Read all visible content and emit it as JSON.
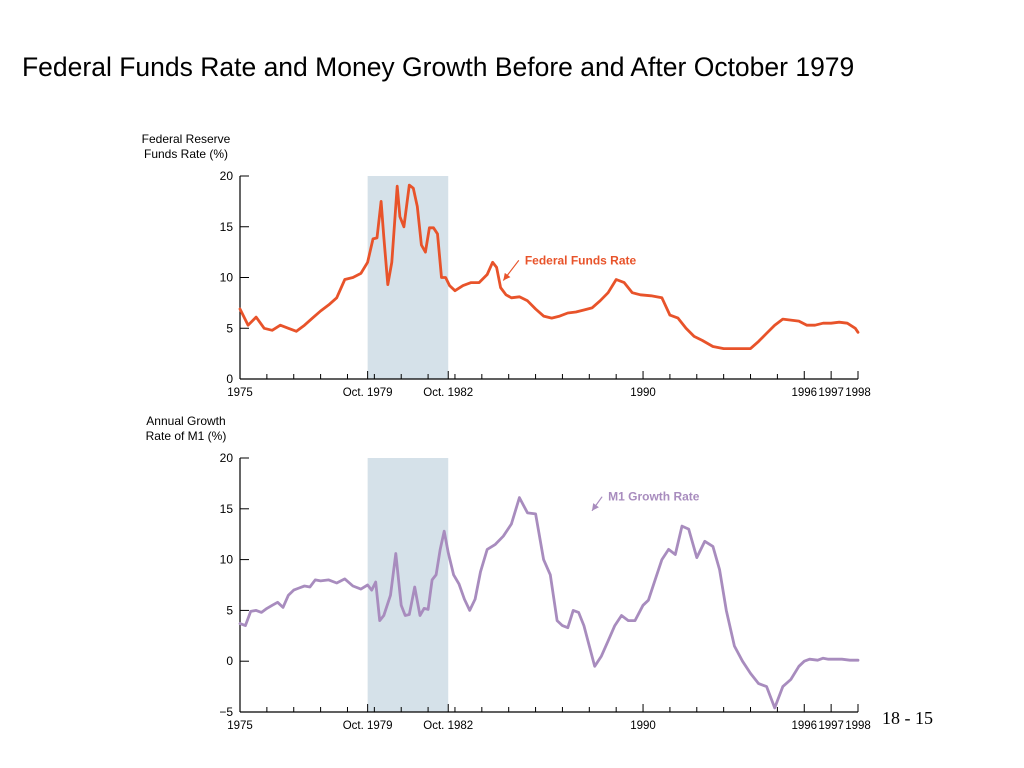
{
  "slide": {
    "title": "Federal Funds Rate and Money Growth Before and After October 1979",
    "page_number": "18 - 15"
  },
  "colors": {
    "funds_line": "#e8532a",
    "m1_line": "#a88cbe",
    "shade": "#d5e1e9",
    "axis": "#000000"
  },
  "chart_data": [
    {
      "type": "line",
      "ylabel": [
        "Federal Reserve",
        "Funds Rate (%)"
      ],
      "ylim": [
        0,
        20
      ],
      "yticks": [
        0,
        5,
        10,
        15,
        20
      ],
      "xlim": [
        1975.0,
        1998.0
      ],
      "x_tick_labels": [
        {
          "x": 1975.0,
          "label": "1975"
        },
        {
          "x": 1979.75,
          "label": "Oct. 1979"
        },
        {
          "x": 1982.75,
          "label": "Oct. 1982"
        },
        {
          "x": 1990.0,
          "label": "1990"
        },
        {
          "x": 1996.0,
          "label": "1996"
        },
        {
          "x": 1997.0,
          "label": "1997"
        },
        {
          "x": 1998.0,
          "label": "1998"
        }
      ],
      "minor_ticks": [
        1976.0,
        1977.0,
        1978.0,
        1979.0,
        1980.0,
        1981.0,
        1982.0,
        1983.0,
        1984.0,
        1985.0,
        1986.0,
        1987.0,
        1988.0,
        1989.0,
        1991.0,
        1992.0,
        1993.0,
        1994.0,
        1995.0
      ],
      "shaded_region": [
        1979.75,
        1982.75
      ],
      "annotation": {
        "text": "Federal Funds Rate",
        "x": 1985.6,
        "y": 11.3,
        "arrow_to": {
          "x": 1984.8,
          "y": 9.7
        }
      },
      "series": [
        {
          "name": "Federal Funds Rate",
          "x": [
            1975.0,
            1975.3,
            1975.6,
            1975.9,
            1976.2,
            1976.5,
            1976.8,
            1977.1,
            1977.4,
            1977.7,
            1978.0,
            1978.3,
            1978.6,
            1978.9,
            1979.2,
            1979.5,
            1979.75,
            1979.95,
            1980.1,
            1980.25,
            1980.35,
            1980.5,
            1980.65,
            1980.85,
            1980.95,
            1981.1,
            1981.3,
            1981.45,
            1981.6,
            1981.75,
            1981.9,
            1982.05,
            1982.2,
            1982.35,
            1982.5,
            1982.65,
            1982.8,
            1983.0,
            1983.3,
            1983.6,
            1983.9,
            1984.2,
            1984.4,
            1984.55,
            1984.7,
            1984.9,
            1985.1,
            1985.4,
            1985.7,
            1986.0,
            1986.3,
            1986.6,
            1986.9,
            1987.2,
            1987.5,
            1987.8,
            1988.1,
            1988.4,
            1988.7,
            1989.0,
            1989.3,
            1989.6,
            1989.9,
            1990.3,
            1990.7,
            1991.0,
            1991.3,
            1991.6,
            1991.9,
            1992.2,
            1992.6,
            1993.0,
            1993.5,
            1994.0,
            1994.3,
            1994.6,
            1994.9,
            1995.2,
            1995.5,
            1995.8,
            1996.1,
            1996.4,
            1996.7,
            1997.0,
            1997.3,
            1997.6,
            1997.9,
            1998.0
          ],
          "y": [
            6.9,
            5.3,
            6.1,
            5.0,
            4.8,
            5.3,
            5.0,
            4.7,
            5.3,
            6.0,
            6.7,
            7.3,
            8.0,
            9.8,
            10.0,
            10.4,
            11.5,
            13.8,
            13.9,
            17.5,
            14.0,
            9.3,
            11.5,
            19.0,
            16.0,
            15.0,
            19.1,
            18.8,
            17.0,
            13.2,
            12.5,
            14.9,
            14.9,
            14.3,
            10.0,
            10.0,
            9.2,
            8.7,
            9.2,
            9.5,
            9.5,
            10.3,
            11.5,
            11.0,
            9.0,
            8.3,
            8.0,
            8.1,
            7.7,
            6.9,
            6.2,
            6.0,
            6.2,
            6.5,
            6.6,
            6.8,
            7.0,
            7.7,
            8.5,
            9.8,
            9.5,
            8.5,
            8.3,
            8.2,
            8.0,
            6.3,
            6.0,
            5.0,
            4.2,
            3.8,
            3.2,
            3.0,
            3.0,
            3.0,
            3.7,
            4.5,
            5.3,
            5.9,
            5.8,
            5.7,
            5.3,
            5.3,
            5.5,
            5.5,
            5.6,
            5.5,
            5.0,
            4.6
          ]
        }
      ]
    },
    {
      "type": "line",
      "ylabel": [
        "Annual Growth",
        "Rate of M1 (%)"
      ],
      "ylim": [
        -5,
        20
      ],
      "yticks": [
        -5,
        0,
        5,
        10,
        15,
        20
      ],
      "xlim": [
        1975.0,
        1998.0
      ],
      "x_tick_labels": [
        {
          "x": 1975.0,
          "label": "1975"
        },
        {
          "x": 1979.75,
          "label": "Oct. 1979"
        },
        {
          "x": 1982.75,
          "label": "Oct. 1982"
        },
        {
          "x": 1990.0,
          "label": "1990"
        },
        {
          "x": 1996.0,
          "label": "1996"
        },
        {
          "x": 1997.0,
          "label": "1997"
        },
        {
          "x": 1998.0,
          "label": "1998"
        }
      ],
      "minor_ticks": [
        1976.0,
        1977.0,
        1978.0,
        1979.0,
        1980.0,
        1981.0,
        1982.0,
        1983.0,
        1984.0,
        1985.0,
        1986.0,
        1987.0,
        1988.0,
        1989.0,
        1991.0,
        1992.0,
        1993.0,
        1994.0,
        1995.0
      ],
      "shaded_region": [
        1979.75,
        1982.75
      ],
      "annotation": {
        "text": "M1 Growth Rate",
        "x": 1988.7,
        "y": 15.8,
        "arrow_to": {
          "x": 1988.1,
          "y": 14.8
        }
      },
      "series": [
        {
          "name": "M1 Growth Rate",
          "x": [
            1975.0,
            1975.2,
            1975.4,
            1975.6,
            1975.8,
            1976.0,
            1976.2,
            1976.4,
            1976.6,
            1976.8,
            1977.0,
            1977.2,
            1977.4,
            1977.6,
            1977.8,
            1978.0,
            1978.3,
            1978.6,
            1978.9,
            1979.2,
            1979.5,
            1979.75,
            1979.9,
            1980.05,
            1980.2,
            1980.35,
            1980.6,
            1980.8,
            1981.0,
            1981.15,
            1981.3,
            1981.5,
            1981.7,
            1981.85,
            1982.0,
            1982.15,
            1982.3,
            1982.45,
            1982.6,
            1982.75,
            1982.95,
            1983.15,
            1983.35,
            1983.55,
            1983.75,
            1983.95,
            1984.2,
            1984.5,
            1984.8,
            1985.1,
            1985.4,
            1985.7,
            1986.0,
            1986.3,
            1986.55,
            1986.8,
            1987.0,
            1987.2,
            1987.4,
            1987.6,
            1987.8,
            1988.0,
            1988.2,
            1988.45,
            1988.7,
            1988.95,
            1989.2,
            1989.45,
            1989.7,
            1990.0,
            1990.2,
            1990.45,
            1990.7,
            1990.95,
            1991.2,
            1991.45,
            1991.7,
            1992.0,
            1992.3,
            1992.6,
            1992.85,
            1993.1,
            1993.4,
            1993.7,
            1994.0,
            1994.3,
            1994.6,
            1994.9,
            1995.2,
            1995.5,
            1995.8,
            1996.0,
            1996.2,
            1996.5,
            1996.7,
            1996.9,
            1997.1,
            1997.4,
            1997.7,
            1998.0
          ],
          "y": [
            3.7,
            3.5,
            4.9,
            5.0,
            4.8,
            5.2,
            5.5,
            5.8,
            5.3,
            6.5,
            7.0,
            7.2,
            7.4,
            7.3,
            8.0,
            7.9,
            8.0,
            7.7,
            8.1,
            7.4,
            7.1,
            7.5,
            7.0,
            7.8,
            4.0,
            4.5,
            6.5,
            10.6,
            5.5,
            4.5,
            4.6,
            7.3,
            4.5,
            5.2,
            5.1,
            8.0,
            8.5,
            11.0,
            12.8,
            10.7,
            8.5,
            7.6,
            6.1,
            5.0,
            6.1,
            8.8,
            11.0,
            11.5,
            12.3,
            13.5,
            16.1,
            14.6,
            14.5,
            10.0,
            8.5,
            4.0,
            3.5,
            3.3,
            5.0,
            4.8,
            3.5,
            1.5,
            -0.5,
            0.5,
            2.0,
            3.5,
            4.5,
            4.0,
            4.0,
            5.5,
            6.0,
            8.0,
            10.0,
            11.0,
            10.5,
            13.3,
            13.0,
            10.2,
            11.8,
            11.3,
            9.0,
            5.0,
            1.5,
            0.0,
            -1.2,
            -2.2,
            -2.5,
            -4.6,
            -2.5,
            -1.8,
            -0.5,
            0.0,
            0.2,
            0.1,
            0.3,
            0.2,
            0.2,
            0.2,
            0.1,
            0.1
          ]
        }
      ]
    }
  ]
}
